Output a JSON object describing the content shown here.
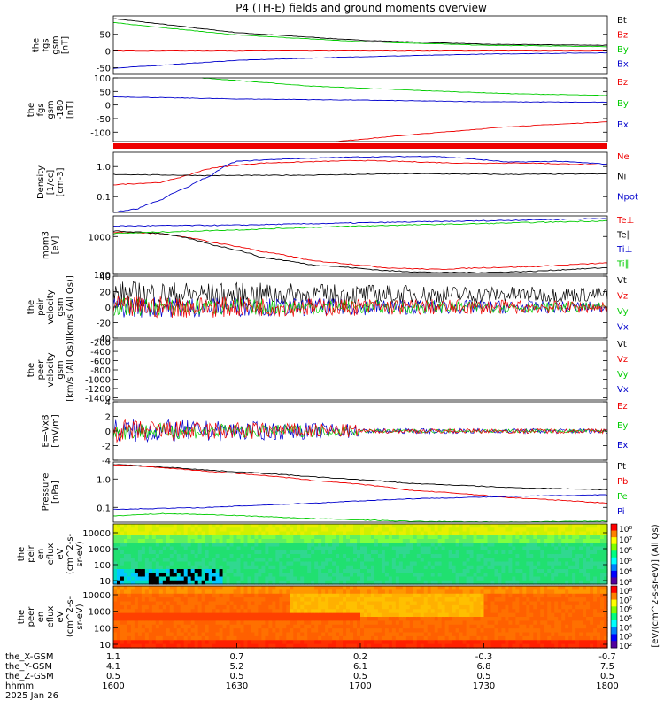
{
  "title": "P4 (TH-E) fields and ground moments overview",
  "chart_data": [
    {
      "type": "line",
      "ylabel": [
        "the",
        "fgs",
        "gsm",
        "[nT]"
      ],
      "yticks": [
        "50",
        "0",
        "-50"
      ],
      "yrange": [
        -70,
        105
      ],
      "legend": [
        {
          "name": "Bt",
          "color": "#000000"
        },
        {
          "name": "Bz",
          "color": "#ee0000"
        },
        {
          "name": "By",
          "color": "#00cc00"
        },
        {
          "name": "Bx",
          "color": "#0000cc"
        }
      ],
      "series": [
        {
          "name": "Bt",
          "color": "#000000",
          "points": [
            [
              0,
              97
            ],
            [
              0.25,
              55
            ],
            [
              0.5,
              32
            ],
            [
              0.75,
              20
            ],
            [
              1,
              17
            ]
          ]
        },
        {
          "name": "Bz",
          "color": "#ee0000",
          "points": [
            [
              0,
              0
            ],
            [
              1,
              0
            ]
          ]
        },
        {
          "name": "By",
          "color": "#00cc00",
          "points": [
            [
              0,
              85
            ],
            [
              0.25,
              48
            ],
            [
              0.5,
              28
            ],
            [
              0.75,
              17
            ],
            [
              1,
              13
            ]
          ]
        },
        {
          "name": "Bx",
          "color": "#0000cc",
          "points": [
            [
              0,
              -52
            ],
            [
              0.25,
              -28
            ],
            [
              0.5,
              -17
            ],
            [
              0.75,
              -9
            ],
            [
              1,
              -5
            ]
          ]
        }
      ]
    },
    {
      "type": "line",
      "ylabel": [
        "the",
        "fgs",
        "gsm",
        "-180",
        "[nT]"
      ],
      "yticks": [
        "100",
        "50",
        "0",
        "-50",
        "-100"
      ],
      "yrange": [
        -135,
        100
      ],
      "legend": [
        {
          "name": "Bz",
          "color": "#ee0000"
        },
        {
          "name": "By",
          "color": "#00cc00"
        },
        {
          "name": "Bx",
          "color": "#0000cc"
        }
      ],
      "series": [
        {
          "name": "Bz",
          "color": "#ee0000",
          "points": [
            [
              0.45,
              -135
            ],
            [
              0.6,
              -110
            ],
            [
              0.8,
              -80
            ],
            [
              1,
              -62
            ]
          ]
        },
        {
          "name": "By",
          "color": "#00cc00",
          "points": [
            [
              0.18,
              100
            ],
            [
              0.4,
              70
            ],
            [
              0.6,
              55
            ],
            [
              0.8,
              42
            ],
            [
              1,
              35
            ]
          ]
        },
        {
          "name": "Bx",
          "color": "#0000cc",
          "points": [
            [
              0,
              30
            ],
            [
              0.25,
              22
            ],
            [
              0.5,
              18
            ],
            [
              0.75,
              12
            ],
            [
              1,
              10
            ]
          ]
        }
      ]
    },
    {
      "type": "line",
      "ylabel": [
        "Density",
        "[1/cc]",
        "[cm-3]"
      ],
      "yticks": [
        "1.0",
        "0.1"
      ],
      "ylog": true,
      "yrange": [
        0.03,
        3
      ],
      "legend": [
        {
          "name": "Ne",
          "color": "#ee0000"
        },
        {
          "name": "Ni",
          "color": "#000000"
        },
        {
          "name": "Npot",
          "color": "#0000cc"
        }
      ],
      "series": [
        {
          "name": "Ne",
          "color": "#ee0000",
          "points": [
            [
              0,
              0.25
            ],
            [
              0.1,
              0.3
            ],
            [
              0.15,
              0.5
            ],
            [
              0.2,
              0.9
            ],
            [
              0.3,
              1.3
            ],
            [
              0.5,
              1.6
            ],
            [
              0.7,
              1.3
            ],
            [
              0.85,
              1.3
            ],
            [
              1,
              1.1
            ]
          ]
        },
        {
          "name": "Ni",
          "color": "#000000",
          "points": [
            [
              0,
              0.55
            ],
            [
              0.2,
              0.5
            ],
            [
              0.4,
              0.52
            ],
            [
              0.6,
              0.58
            ],
            [
              0.8,
              0.55
            ],
            [
              1,
              0.57
            ]
          ]
        },
        {
          "name": "Npot",
          "color": "#0000cc",
          "points": [
            [
              0,
              0.03
            ],
            [
              0.05,
              0.04
            ],
            [
              0.1,
              0.08
            ],
            [
              0.15,
              0.2
            ],
            [
              0.2,
              0.5
            ],
            [
              0.25,
              1.5
            ],
            [
              0.35,
              1.8
            ],
            [
              0.5,
              2.1
            ],
            [
              0.65,
              2.2
            ],
            [
              0.8,
              1.4
            ],
            [
              0.9,
              1.5
            ],
            [
              1,
              1.2
            ]
          ]
        }
      ]
    },
    {
      "type": "line",
      "ylabel": [
        "mom3",
        "[eV]"
      ],
      "yticks": [
        "1000",
        "100"
      ],
      "ylog": true,
      "yrange": [
        100,
        3500
      ],
      "legend": [
        {
          "name": "Te⊥",
          "color": "#ee0000"
        },
        {
          "name": "Te∥",
          "color": "#000000"
        },
        {
          "name": "Ti⊥",
          "color": "#0000cc"
        },
        {
          "name": "Ti∥",
          "color": "#00cc00"
        }
      ],
      "series": [
        {
          "name": "Te⊥",
          "color": "#ee0000",
          "points": [
            [
              0,
              1300
            ],
            [
              0.1,
              1200
            ],
            [
              0.2,
              700
            ],
            [
              0.3,
              400
            ],
            [
              0.4,
              230
            ],
            [
              0.55,
              150
            ],
            [
              0.65,
              135
            ],
            [
              0.75,
              150
            ],
            [
              0.85,
              160
            ],
            [
              1,
              200
            ]
          ]
        },
        {
          "name": "Te∥",
          "color": "#000000",
          "points": [
            [
              0,
              1400
            ],
            [
              0.1,
              1200
            ],
            [
              0.15,
              900
            ],
            [
              0.2,
              600
            ],
            [
              0.3,
              280
            ],
            [
              0.4,
              180
            ],
            [
              0.55,
              125
            ],
            [
              0.65,
              112
            ],
            [
              0.75,
              112
            ],
            [
              0.85,
              120
            ],
            [
              1,
              150
            ]
          ]
        },
        {
          "name": "Ti⊥",
          "color": "#0000cc",
          "points": [
            [
              0,
              1900
            ],
            [
              0.25,
              2000
            ],
            [
              0.5,
              2300
            ],
            [
              0.75,
              2600
            ],
            [
              1,
              3000
            ]
          ]
        },
        {
          "name": "Ti∥",
          "color": "#00cc00",
          "points": [
            [
              0,
              1200
            ],
            [
              0.25,
              1500
            ],
            [
              0.5,
              1900
            ],
            [
              0.75,
              2200
            ],
            [
              1,
              2600
            ]
          ]
        }
      ]
    },
    {
      "type": "line",
      "ylabel": [
        "the",
        "peir",
        "velocity",
        "gsm",
        "[km/s (All Qs)]"
      ],
      "yticks": [
        "40",
        "20",
        "0",
        "-20",
        "-40"
      ],
      "yrange": [
        -40,
        40
      ],
      "legend": [
        {
          "name": "Vt",
          "color": "#000000"
        },
        {
          "name": "Vz",
          "color": "#ee0000"
        },
        {
          "name": "Vy",
          "color": "#00cc00"
        },
        {
          "name": "Vx",
          "color": "#0000cc"
        }
      ],
      "series": []
    },
    {
      "type": "line",
      "ylabel": [
        "the",
        "peer",
        "velocity",
        "gsm",
        "[km/s (All Qs)]"
      ],
      "yticks": [
        "-200",
        "-400",
        "-600",
        "-800",
        "-1000",
        "-1200",
        "-1400"
      ],
      "yrange": [
        -1450,
        -150
      ],
      "legend": [
        {
          "name": "Vt",
          "color": "#000000"
        },
        {
          "name": "Vz",
          "color": "#ee0000"
        },
        {
          "name": "Vy",
          "color": "#00cc00"
        },
        {
          "name": "Vx",
          "color": "#0000cc"
        }
      ],
      "series": []
    },
    {
      "type": "line",
      "ylabel": [
        "E=-VxB",
        "[mV/m]"
      ],
      "yticks": [
        "4",
        "2",
        "0",
        "-2",
        "-4"
      ],
      "yrange": [
        -4,
        4
      ],
      "legend": [
        {
          "name": "Ez",
          "color": "#ee0000"
        },
        {
          "name": "Ey",
          "color": "#00cc00"
        },
        {
          "name": "Ex",
          "color": "#0000cc"
        }
      ],
      "series": []
    },
    {
      "type": "line",
      "ylabel": [
        "Pressure",
        "[nPa]"
      ],
      "yticks": [
        "1.0",
        "0.1"
      ],
      "ylog": true,
      "yrange": [
        0.03,
        4
      ],
      "legend": [
        {
          "name": "Pt",
          "color": "#000000"
        },
        {
          "name": "Pb",
          "color": "#ee0000"
        },
        {
          "name": "Pe",
          "color": "#00cc00"
        },
        {
          "name": "Pi",
          "color": "#0000cc"
        }
      ],
      "series": [
        {
          "name": "Pt",
          "color": "#000000",
          "points": [
            [
              0,
              3.3
            ],
            [
              0.2,
              2.0
            ],
            [
              0.4,
              1.2
            ],
            [
              0.6,
              0.7
            ],
            [
              0.8,
              0.5
            ],
            [
              1,
              0.42
            ]
          ]
        },
        {
          "name": "Pb",
          "color": "#ee0000",
          "points": [
            [
              0,
              3.2
            ],
            [
              0.2,
              1.8
            ],
            [
              0.4,
              0.9
            ],
            [
              0.6,
              0.4
            ],
            [
              0.8,
              0.22
            ],
            [
              1,
              0.14
            ]
          ]
        },
        {
          "name": "Pe",
          "color": "#00cc00",
          "points": [
            [
              0,
              0.05
            ],
            [
              0.1,
              0.06
            ],
            [
              0.2,
              0.055
            ],
            [
              0.4,
              0.04
            ],
            [
              0.6,
              0.032
            ],
            [
              0.8,
              0.03
            ],
            [
              1,
              0.033
            ]
          ]
        },
        {
          "name": "Pi",
          "color": "#0000cc",
          "points": [
            [
              0,
              0.085
            ],
            [
              0.2,
              0.1
            ],
            [
              0.4,
              0.14
            ],
            [
              0.6,
              0.2
            ],
            [
              0.8,
              0.24
            ],
            [
              1,
              0.28
            ]
          ]
        }
      ]
    },
    {
      "type": "heatmap",
      "ylabel": [
        "the",
        "peir",
        "en",
        "eflux",
        "eV",
        "(cm^2-s-",
        "sr-eV)"
      ],
      "yticks": [
        "10000",
        "1000",
        "100",
        "10"
      ],
      "colorbar_ticks": [
        "10⁸",
        "10⁷",
        "10⁶",
        "10⁵",
        "10⁴",
        "10³"
      ]
    },
    {
      "type": "heatmap",
      "ylabel": [
        "the",
        "peer",
        "en",
        "eflux",
        "eV",
        "(cm^2-s-",
        "sr-eV)"
      ],
      "yticks": [
        "10000",
        "1000",
        "100",
        "10"
      ],
      "colorbar_ticks": [
        "10⁸",
        "10⁷",
        "10⁶",
        "10⁵",
        "10⁴",
        "10³",
        "10²"
      ]
    }
  ],
  "colorbar_label": "[eV/(cm^2-s-sr-eV)] (All Qs)",
  "axis_rows": [
    {
      "label": "the_X-GSM",
      "values": [
        "1.1",
        "0.7",
        "0.2",
        "-0.3",
        "-0.7"
      ]
    },
    {
      "label": "the_Y-GSM",
      "values": [
        "4.1",
        "5.2",
        "6.1",
        "6.8",
        "7.5"
      ]
    },
    {
      "label": "the_Z-GSM",
      "values": [
        "0.5",
        "0.5",
        "0.5",
        "0.5",
        "0.5"
      ]
    },
    {
      "label": "hhmm",
      "values": [
        "1600",
        "1630",
        "1700",
        "1730",
        "1800"
      ]
    }
  ],
  "date_label": "2025 Jan 26"
}
